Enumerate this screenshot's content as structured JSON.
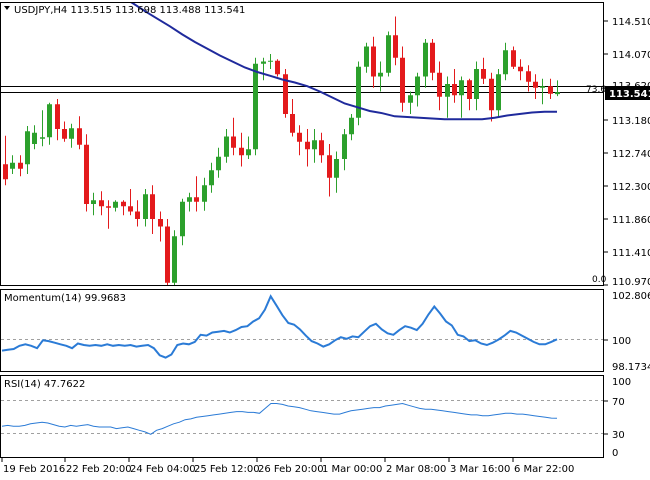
{
  "main_panel": {
    "header": "USDJPY,H4  113.515 113.698 113.488 113.541",
    "price_labels": [
      "114.510",
      "114.070",
      "113.620",
      "113.541",
      "113.180",
      "112.740",
      "112.300",
      "111.860",
      "111.410",
      "110.970"
    ],
    "fib_label": "73.6",
    "fib_zero_label": "0.0",
    "current_price": "113.541"
  },
  "momentum_panel": {
    "header": "Momentum(14) 99.9683",
    "labels": [
      "102.8067",
      "100",
      "98.1734"
    ]
  },
  "rsi_panel": {
    "header": "RSI(14) 47.7622",
    "labels": [
      "100",
      "70",
      "30",
      "0"
    ]
  },
  "time_labels": [
    "19 Feb 2016",
    "22 Feb 20:00",
    "24 Feb 04:00",
    "25 Feb 12:00",
    "26 Feb 20:00",
    "1 Mar 00:00",
    "2 Mar 08:00",
    "3 Mar 16:00",
    "6 Mar 22:00"
  ],
  "colors": {
    "bull": "#2ca02c",
    "bear": "#e31a1c",
    "ma": "#1f2a9c",
    "indicator": "#2b7bd6",
    "grid_dash": "#a0a0a0",
    "frame": "#000000"
  },
  "chart_data": [
    {
      "type": "candlestick",
      "title": "USDJPY,H4",
      "ylim": [
        110.97,
        114.73
      ],
      "series": [
        {
          "name": "USDJPY",
          "candles": [
            [
              112.58,
              112.96,
              112.3,
              112.38
            ],
            [
              112.52,
              112.7,
              112.45,
              112.6
            ],
            [
              112.6,
              112.7,
              112.42,
              112.52
            ],
            [
              112.58,
              113.09,
              112.45,
              113.02
            ],
            [
              112.85,
              113.1,
              112.78,
              113.0
            ],
            [
              112.92,
              113.3,
              112.82,
              112.94
            ],
            [
              112.94,
              113.4,
              112.84,
              113.38
            ],
            [
              113.38,
              113.45,
              112.9,
              113.05
            ],
            [
              113.05,
              113.15,
              112.88,
              112.92
            ],
            [
              112.92,
              113.12,
              112.8,
              113.06
            ],
            [
              113.06,
              113.22,
              112.78,
              112.84
            ],
            [
              112.84,
              112.98,
              111.95,
              112.05
            ],
            [
              112.05,
              112.2,
              111.9,
              112.1
            ],
            [
              112.1,
              112.22,
              111.9,
              112.02
            ],
            [
              112.02,
              112.1,
              111.72,
              112.0
            ],
            [
              112.0,
              112.1,
              111.95,
              112.08
            ],
            [
              112.08,
              112.1,
              111.9,
              112.02
            ],
            [
              112.02,
              112.25,
              111.9,
              111.95
            ],
            [
              111.95,
              112.1,
              111.75,
              111.85
            ],
            [
              111.85,
              112.25,
              111.75,
              112.18
            ],
            [
              112.18,
              112.3,
              111.65,
              111.85
            ],
            [
              111.85,
              111.95,
              111.55,
              111.75
            ],
            [
              111.75,
              111.85,
              110.97,
              111.0
            ],
            [
              111.0,
              111.7,
              110.97,
              111.62
            ],
            [
              111.62,
              112.12,
              111.5,
              112.08
            ],
            [
              112.08,
              112.2,
              111.95,
              112.14
            ],
            [
              112.14,
              112.42,
              111.95,
              112.08
            ],
            [
              112.08,
              112.4,
              111.96,
              112.3
            ],
            [
              112.3,
              112.6,
              112.2,
              112.5
            ],
            [
              112.5,
              112.8,
              112.4,
              112.68
            ],
            [
              112.68,
              113.05,
              112.6,
              112.95
            ],
            [
              112.95,
              113.2,
              112.7,
              112.8
            ],
            [
              112.8,
              113.0,
              112.55,
              112.7
            ],
            [
              112.7,
              112.95,
              112.65,
              112.78
            ],
            [
              112.78,
              114.0,
              112.7,
              113.92
            ],
            [
              113.92,
              114.0,
              113.7,
              113.95
            ],
            [
              113.95,
              114.05,
              113.85,
              113.96
            ],
            [
              113.96,
              113.98,
              113.75,
              113.78
            ],
            [
              113.78,
              113.85,
              113.2,
              113.25
            ],
            [
              113.25,
              113.45,
              112.95,
              113.0
            ],
            [
              113.0,
              113.1,
              112.7,
              112.88
            ],
            [
              112.88,
              113.05,
              112.55,
              112.78
            ],
            [
              112.78,
              113.05,
              112.6,
              112.9
            ],
            [
              112.9,
              113.0,
              112.6,
              112.7
            ],
            [
              112.7,
              112.85,
              112.15,
              112.4
            ],
            [
              112.4,
              112.75,
              112.2,
              112.65
            ],
            [
              112.65,
              113.05,
              112.5,
              112.98
            ],
            [
              112.98,
              113.25,
              112.9,
              113.2
            ],
            [
              113.2,
              113.95,
              113.1,
              113.88
            ],
            [
              113.88,
              114.2,
              113.8,
              114.15
            ],
            [
              114.15,
              114.28,
              113.6,
              113.75
            ],
            [
              113.75,
              113.95,
              113.55,
              113.8
            ],
            [
              113.8,
              114.35,
              113.75,
              114.3
            ],
            [
              114.3,
              114.55,
              113.9,
              114.0
            ],
            [
              114.0,
              114.15,
              113.28,
              113.4
            ],
            [
              113.4,
              113.55,
              113.25,
              113.5
            ],
            [
              113.5,
              113.8,
              113.35,
              113.75
            ],
            [
              113.75,
              114.25,
              113.6,
              114.2
            ],
            [
              114.2,
              114.25,
              113.7,
              113.8
            ],
            [
              113.8,
              113.95,
              113.3,
              113.48
            ],
            [
              113.48,
              113.75,
              113.2,
              113.65
            ],
            [
              113.65,
              113.85,
              113.4,
              113.5
            ],
            [
              113.5,
              113.75,
              113.2,
              113.7
            ],
            [
              113.7,
              113.72,
              113.3,
              113.45
            ],
            [
              113.45,
              113.95,
              113.3,
              113.85
            ],
            [
              113.85,
              114.0,
              113.65,
              113.72
            ],
            [
              113.72,
              113.8,
              113.15,
              113.3
            ],
            [
              113.3,
              113.85,
              113.2,
              113.78
            ],
            [
              113.78,
              114.2,
              113.7,
              114.1
            ],
            [
              114.1,
              114.15,
              113.85,
              113.88
            ],
            [
              113.88,
              113.98,
              113.7,
              113.82
            ],
            [
              113.82,
              113.9,
              113.55,
              113.68
            ],
            [
              113.68,
              113.78,
              113.45,
              113.6
            ],
            [
              113.6,
              113.72,
              113.38,
              113.62
            ],
            [
              113.62,
              113.72,
              113.45,
              113.52
            ],
            [
              113.515,
              113.698,
              113.488,
              113.541
            ]
          ]
        }
      ],
      "moving_average": [
        114.82,
        114.73,
        114.62,
        114.52,
        114.42,
        114.31,
        114.21,
        114.12,
        114.03,
        113.95,
        113.87,
        113.81,
        113.76,
        113.71,
        113.67,
        113.62,
        113.55,
        113.47,
        113.39,
        113.34,
        113.29,
        113.26,
        113.22,
        113.21,
        113.2,
        113.19,
        113.18,
        113.18,
        113.18,
        113.18,
        113.2,
        113.23,
        113.25,
        113.27,
        113.28,
        113.28
      ],
      "fib_level": {
        "label": "73.6",
        "value": 113.62
      },
      "current_price": 113.541
    },
    {
      "type": "line",
      "title": "Momentum(14)",
      "ylim": [
        97.95,
        103.1
      ],
      "reference": 100,
      "values": [
        99.25,
        99.3,
        99.35,
        99.55,
        99.65,
        99.55,
        99.4,
        99.9,
        99.85,
        99.75,
        99.65,
        99.55,
        99.4,
        99.7,
        99.6,
        99.55,
        99.6,
        99.55,
        99.65,
        99.55,
        99.6,
        99.55,
        99.6,
        99.5,
        99.55,
        99.6,
        99.4,
        98.95,
        98.8,
        99.0,
        99.6,
        99.7,
        99.65,
        99.8,
        100.25,
        100.2,
        100.4,
        100.45,
        100.5,
        100.4,
        100.55,
        100.75,
        100.8,
        101.1,
        101.3,
        101.85,
        102.7,
        102.1,
        101.5,
        101.0,
        100.9,
        100.6,
        100.2,
        99.85,
        99.7,
        99.5,
        99.65,
        99.9,
        100.1,
        100.0,
        100.15,
        100.1,
        100.45,
        100.8,
        100.95,
        100.6,
        100.35,
        100.25,
        100.55,
        100.8,
        100.7,
        100.55,
        100.95,
        101.55,
        102.05,
        101.6,
        101.1,
        100.85,
        100.25,
        100.15,
        99.85,
        99.9,
        99.7,
        99.6,
        99.75,
        99.95,
        100.2,
        100.5,
        100.4,
        100.2,
        100.0,
        99.8,
        99.65,
        99.65,
        99.8,
        99.9683
      ]
    },
    {
      "type": "line",
      "title": "RSI(14)",
      "ylim": [
        0,
        100
      ],
      "levels": [
        70,
        30
      ],
      "values": [
        38,
        39,
        38,
        38,
        39,
        41,
        42,
        43,
        42,
        40,
        38,
        37,
        39,
        38,
        39,
        40,
        38,
        37,
        37,
        37,
        35,
        36,
        37,
        35,
        33,
        31,
        28,
        33,
        35,
        38,
        41,
        43,
        46,
        47,
        49,
        50,
        51,
        52,
        53,
        54,
        55,
        56,
        56,
        55,
        55,
        54,
        60,
        66,
        66,
        65,
        63,
        62,
        61,
        59,
        57,
        56,
        55,
        54,
        53,
        53,
        55,
        57,
        58,
        59,
        60,
        61,
        61,
        63,
        64,
        65,
        66,
        64,
        62,
        60,
        59,
        59,
        58,
        57,
        56,
        55,
        54,
        53,
        52,
        52,
        51,
        51,
        52,
        53,
        54,
        54,
        53,
        53,
        52,
        51,
        50,
        49,
        48,
        47.7622
      ]
    }
  ]
}
